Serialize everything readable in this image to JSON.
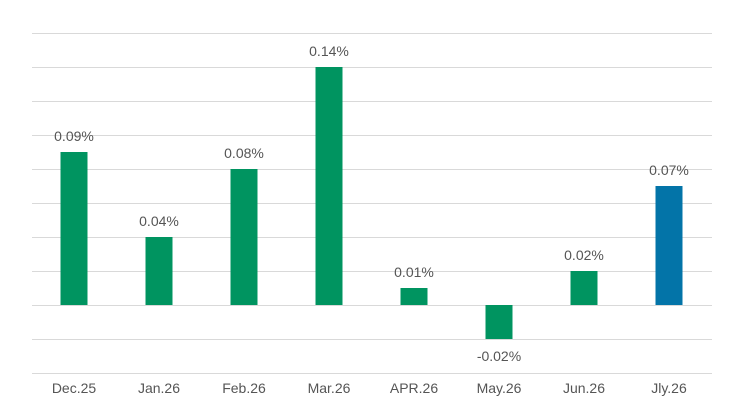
{
  "chart_data": {
    "type": "bar",
    "title": "",
    "xlabel": "",
    "ylabel": "",
    "categories": [
      "Dec.25",
      "Jan.26",
      "Feb.26",
      "Mar.26",
      "APR.26",
      "May.26",
      "Jun.26",
      "Jly.26"
    ],
    "values": [
      0.09,
      0.04,
      0.08,
      0.14,
      0.01,
      -0.02,
      0.02,
      0.07
    ],
    "data_labels": [
      "0.09%",
      "0.04%",
      "0.08%",
      "0.14%",
      "0.01%",
      "-0.02%",
      "0.02%",
      "0.07%"
    ],
    "ylim": [
      -0.04,
      0.16
    ],
    "grid_step": 0.02,
    "grid": true,
    "legend": "none",
    "colors": [
      "#009460",
      "#009460",
      "#009460",
      "#009460",
      "#009460",
      "#009460",
      "#009460",
      "#0374a8"
    ]
  }
}
